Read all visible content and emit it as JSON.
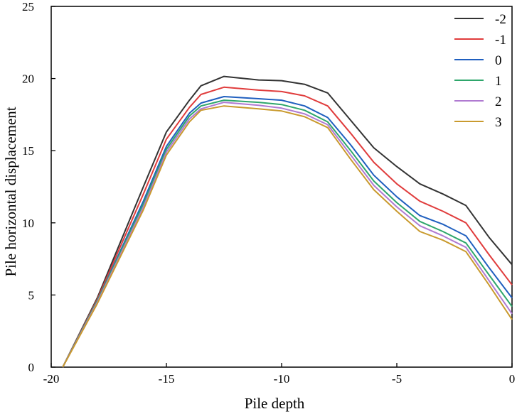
{
  "chart_data": {
    "type": "line",
    "xlabel": "Pile depth",
    "ylabel": "Pile horizontal displacement",
    "xlim": [
      -20,
      0
    ],
    "ylim": [
      0,
      25
    ],
    "xticks": [
      -20,
      -15,
      -10,
      -5,
      0
    ],
    "yticks": [
      0,
      5,
      10,
      15,
      20,
      25
    ],
    "grid": false,
    "legend_position": "top-right",
    "series": [
      {
        "name": "-2",
        "color": "#333333",
        "x": [
          -19.5,
          -18,
          -16,
          -15,
          -14,
          -13.5,
          -12.5,
          -11,
          -10,
          -9,
          -8,
          -7,
          -6,
          -5,
          -4,
          -3,
          -2,
          -1,
          0
        ],
        "y": [
          0,
          4.8,
          12.5,
          16.3,
          18.5,
          19.5,
          20.15,
          19.9,
          19.85,
          19.6,
          19.0,
          17.1,
          15.2,
          13.9,
          12.7,
          12.0,
          11.2,
          9.0,
          7.1
        ]
      },
      {
        "name": "-1",
        "color": "#e03c3c",
        "x": [
          -19.5,
          -18,
          -16,
          -15,
          -14,
          -13.5,
          -12.5,
          -11,
          -10,
          -9,
          -8,
          -7,
          -6,
          -5,
          -4,
          -3,
          -2,
          -1,
          0
        ],
        "y": [
          0,
          4.7,
          12.0,
          15.8,
          18.0,
          18.9,
          19.4,
          19.2,
          19.1,
          18.8,
          18.1,
          16.2,
          14.2,
          12.7,
          11.5,
          10.8,
          10.0,
          7.8,
          5.7
        ]
      },
      {
        "name": "0",
        "color": "#1f5fbf",
        "x": [
          -19.5,
          -18,
          -16,
          -15,
          -14,
          -13.5,
          -12.5,
          -11,
          -10,
          -9,
          -8,
          -7,
          -6,
          -5,
          -4,
          -3,
          -2,
          -1,
          0
        ],
        "y": [
          0,
          4.6,
          11.5,
          15.3,
          17.6,
          18.3,
          18.75,
          18.6,
          18.5,
          18.1,
          17.3,
          15.4,
          13.3,
          11.8,
          10.5,
          9.9,
          9.1,
          6.9,
          4.8
        ]
      },
      {
        "name": "1",
        "color": "#2ea66b",
        "x": [
          -19.5,
          -18,
          -16,
          -15,
          -14,
          -13.5,
          -12.5,
          -11,
          -10,
          -9,
          -8,
          -7,
          -6,
          -5,
          -4,
          -3,
          -2,
          -1,
          0
        ],
        "y": [
          0,
          4.6,
          11.3,
          15.1,
          17.4,
          18.1,
          18.5,
          18.35,
          18.2,
          17.8,
          17.0,
          15.0,
          12.9,
          11.4,
          10.1,
          9.4,
          8.6,
          6.4,
          4.2
        ]
      },
      {
        "name": "2",
        "color": "#b07ad1",
        "x": [
          -19.5,
          -18,
          -16,
          -15,
          -14,
          -13.5,
          -12.5,
          -11,
          -10,
          -9,
          -8,
          -7,
          -6,
          -5,
          -4,
          -3,
          -2,
          -1,
          0
        ],
        "y": [
          0,
          4.5,
          11.1,
          14.9,
          17.2,
          17.9,
          18.35,
          18.15,
          17.95,
          17.55,
          16.8,
          14.7,
          12.6,
          11.1,
          9.8,
          9.1,
          8.3,
          6.0,
          3.7
        ]
      },
      {
        "name": "3",
        "color": "#c99a2e",
        "x": [
          -19.5,
          -18,
          -16,
          -15,
          -14,
          -13.5,
          -12.5,
          -11,
          -10,
          -9,
          -8,
          -7,
          -6,
          -5,
          -4,
          -3,
          -2,
          -1,
          0
        ],
        "y": [
          0,
          4.4,
          10.9,
          14.7,
          17.0,
          17.8,
          18.1,
          17.9,
          17.75,
          17.35,
          16.6,
          14.4,
          12.3,
          10.8,
          9.4,
          8.8,
          8.0,
          5.7,
          3.3
        ]
      }
    ]
  }
}
